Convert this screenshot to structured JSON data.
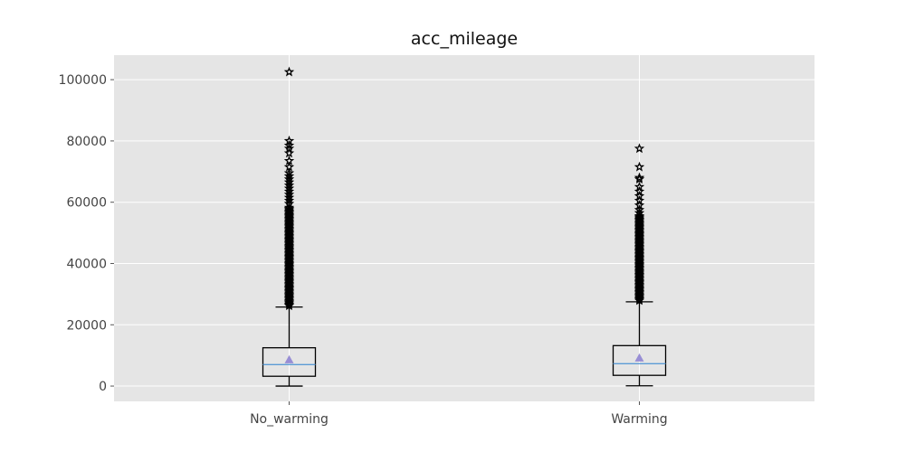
{
  "chart_data": {
    "type": "box",
    "title": "acc_mileage",
    "xlabel": "",
    "ylabel": "",
    "ylim": [
      -5000,
      108000
    ],
    "yticks": [
      0,
      20000,
      40000,
      60000,
      80000,
      100000
    ],
    "ytick_labels": [
      "0",
      "20000",
      "40000",
      "60000",
      "80000",
      "100000"
    ],
    "categories": [
      "No_warming",
      "Warming"
    ],
    "grid": true,
    "series": [
      {
        "name": "No_warming",
        "whisker_low": 0,
        "q1": 3200,
        "median": 7000,
        "q3": 12500,
        "whisker_high": 25800,
        "mean": 8600,
        "outlier_band": [
          25800,
          58500
        ],
        "outliers": [
          59500,
          60500,
          61500,
          62500,
          63500,
          64500,
          65500,
          66500,
          67500,
          68500,
          69500,
          71500,
          73500,
          76000,
          77500,
          78500,
          80000,
          102500
        ]
      },
      {
        "name": "Warming",
        "whisker_low": 100,
        "q1": 3500,
        "median": 7300,
        "q3": 13200,
        "whisker_high": 27500,
        "mean": 9200,
        "outlier_band": [
          27500,
          55500
        ],
        "outliers": [
          56500,
          57500,
          59000,
          60500,
          62000,
          63500,
          65000,
          67500,
          68000,
          71500,
          77500
        ]
      }
    ],
    "colors": {
      "plot_background": "#e5e5e5",
      "grid": "#ffffff",
      "box": "#000000",
      "median": "#5b9bd5",
      "mean_marker": "#988ed5",
      "outlier_marker": "#000000"
    }
  }
}
